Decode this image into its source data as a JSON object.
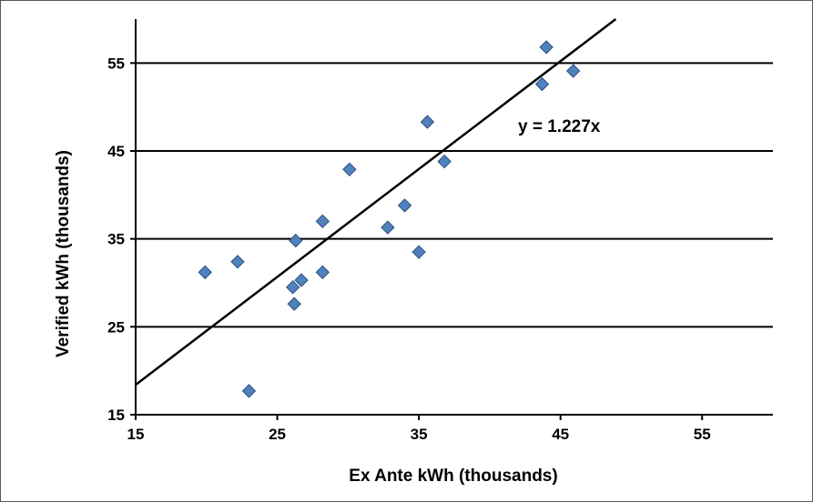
{
  "chart_data": {
    "type": "scatter",
    "title": "",
    "xlabel": "Ex Ante kWh (thousands)",
    "ylabel": "Verified kWh (thousands)",
    "xlim": [
      15,
      60
    ],
    "ylim": [
      15,
      60
    ],
    "x_ticks": [
      15,
      25,
      35,
      45,
      55
    ],
    "y_ticks": [
      15,
      25,
      35,
      45,
      55
    ],
    "x_tick_labels": [
      "15",
      "25",
      "35",
      "45",
      "55"
    ],
    "y_tick_labels": [
      "15",
      "25",
      "35",
      "45",
      "55"
    ],
    "horizontal_grid": true,
    "vertical_grid": false,
    "marker": "diamond",
    "marker_color": "#4F81BD",
    "marker_edge_color": "#2C4F7C",
    "series": [
      {
        "points": [
          {
            "x": 19.9,
            "y": 31.2
          },
          {
            "x": 22.2,
            "y": 32.4
          },
          {
            "x": 23.0,
            "y": 17.7
          },
          {
            "x": 26.1,
            "y": 29.5
          },
          {
            "x": 26.2,
            "y": 27.6
          },
          {
            "x": 26.3,
            "y": 34.8
          },
          {
            "x": 26.7,
            "y": 30.3
          },
          {
            "x": 28.2,
            "y": 37.0
          },
          {
            "x": 28.2,
            "y": 31.2
          },
          {
            "x": 30.1,
            "y": 42.9
          },
          {
            "x": 32.8,
            "y": 36.3
          },
          {
            "x": 34.0,
            "y": 38.8
          },
          {
            "x": 35.0,
            "y": 33.5
          },
          {
            "x": 35.6,
            "y": 48.3
          },
          {
            "x": 36.8,
            "y": 43.8
          },
          {
            "x": 43.7,
            "y": 52.6
          },
          {
            "x": 44.0,
            "y": 56.8
          },
          {
            "x": 45.9,
            "y": 54.1
          }
        ]
      }
    ],
    "trendline": {
      "slope": 1.227,
      "intercept": 0,
      "label": "y = 1.227x",
      "color": "#000000"
    },
    "colors": {
      "axis": "#000000",
      "grid": "#000000",
      "frame": "#595959"
    }
  }
}
